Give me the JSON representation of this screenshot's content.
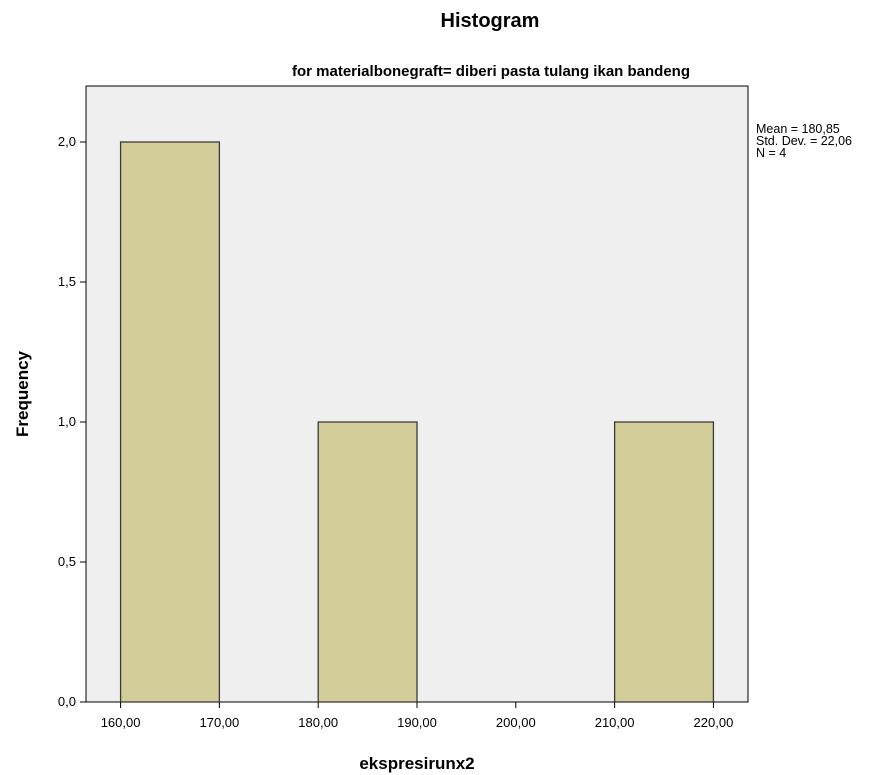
{
  "chart_data": {
    "type": "bar",
    "title": "Histogram",
    "subtitle": "for materialbonegraft= diberi pasta tulang ikan bandeng",
    "xlabel": "ekspresirunx2",
    "ylabel": "Frequency",
    "bins": [
      {
        "from": 160,
        "to": 170,
        "count": 2
      },
      {
        "from": 180,
        "to": 190,
        "count": 1
      },
      {
        "from": 210,
        "to": 220,
        "count": 1
      }
    ],
    "xlim": [
      156.5,
      223.5
    ],
    "ylim": [
      0,
      2.2
    ],
    "x_ticks": [
      {
        "value": 160,
        "label": "160,00"
      },
      {
        "value": 170,
        "label": "170,00"
      },
      {
        "value": 180,
        "label": "180,00"
      },
      {
        "value": 190,
        "label": "190,00"
      },
      {
        "value": 200,
        "label": "200,00"
      },
      {
        "value": 210,
        "label": "210,00"
      },
      {
        "value": 220,
        "label": "220,00"
      }
    ],
    "y_ticks": [
      {
        "value": 0,
        "label": "0,0"
      },
      {
        "value": 0.5,
        "label": "0,5"
      },
      {
        "value": 1,
        "label": "1,0"
      },
      {
        "value": 1.5,
        "label": "1,5"
      },
      {
        "value": 2,
        "label": "2,0"
      }
    ],
    "stats": [
      "Mean = 180,85",
      "Std. Dev. = 22,06",
      "N = 4"
    ],
    "grid": false,
    "legend": "top-right",
    "colors": {
      "plot_background": "#efefef",
      "bar_fill": "#d3ce99",
      "bar_stroke": "#3a3a3a",
      "axis": "#000000"
    }
  }
}
